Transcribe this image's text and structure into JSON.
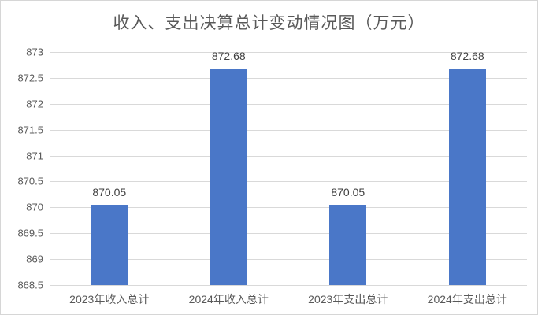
{
  "chart_data": {
    "type": "bar",
    "title": "收入、支出决算总计变动情况图（万元）",
    "categories": [
      "2023年收入总计",
      "2024年收入总计",
      "2023年支出总计",
      "2024年支出总计"
    ],
    "values": [
      870.05,
      872.68,
      870.05,
      872.68
    ],
    "value_labels": [
      "870.05",
      "872.68",
      "870.05",
      "872.68"
    ],
    "xlabel": "",
    "ylabel": "",
    "ylim": [
      868.5,
      873
    ],
    "ytick_step": 0.5,
    "ytick_labels": [
      "873",
      "872.5",
      "872",
      "871.5",
      "871",
      "870.5",
      "870",
      "869.5",
      "869",
      "868.5"
    ],
    "grid": true,
    "legend": "none",
    "bar_color": "#4a77c8",
    "gridline_color": "#d9d9d9",
    "axis_label_color": "#595959",
    "data_label_color": "#404040",
    "title_color": "#595959",
    "background_color": "#ffffff",
    "border_color": "#d6d6d6"
  }
}
